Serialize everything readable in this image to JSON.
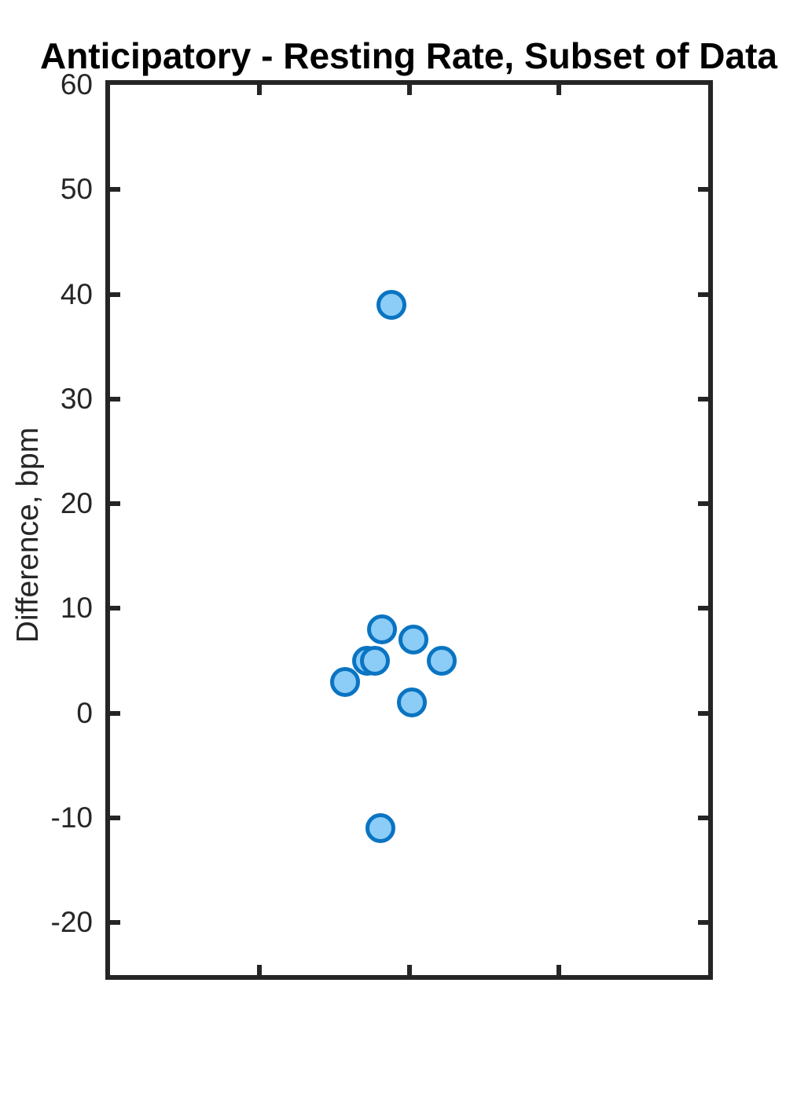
{
  "chart_data": {
    "type": "scatter",
    "title": "Anticipatory - Resting Rate, Subset of Data",
    "xlabel": "",
    "ylabel": "Difference, bpm",
    "xlim": [
      0,
      4
    ],
    "ylim": [
      -25,
      60
    ],
    "xticks": [
      1,
      2,
      3
    ],
    "xtick_labels": [],
    "yticks": [
      -20,
      -10,
      0,
      10,
      20,
      30,
      40,
      50,
      60
    ],
    "grid": false,
    "legend": null,
    "box": true,
    "tick_direction": "in",
    "points": [
      {
        "x": 1.88,
        "y": 39
      },
      {
        "x": 1.82,
        "y": 8
      },
      {
        "x": 2.03,
        "y": 7
      },
      {
        "x": 1.72,
        "y": 5
      },
      {
        "x": 1.77,
        "y": 5
      },
      {
        "x": 2.22,
        "y": 5
      },
      {
        "x": 1.57,
        "y": 3
      },
      {
        "x": 2.02,
        "y": 1
      },
      {
        "x": 1.81,
        "y": -11
      }
    ],
    "colors": {
      "marker_face": "#8ccdf7",
      "marker_edge": "#0a74c2",
      "axis": "#252525",
      "tick_label": "#262626",
      "title": "#000000",
      "background": "#ffffff"
    }
  }
}
